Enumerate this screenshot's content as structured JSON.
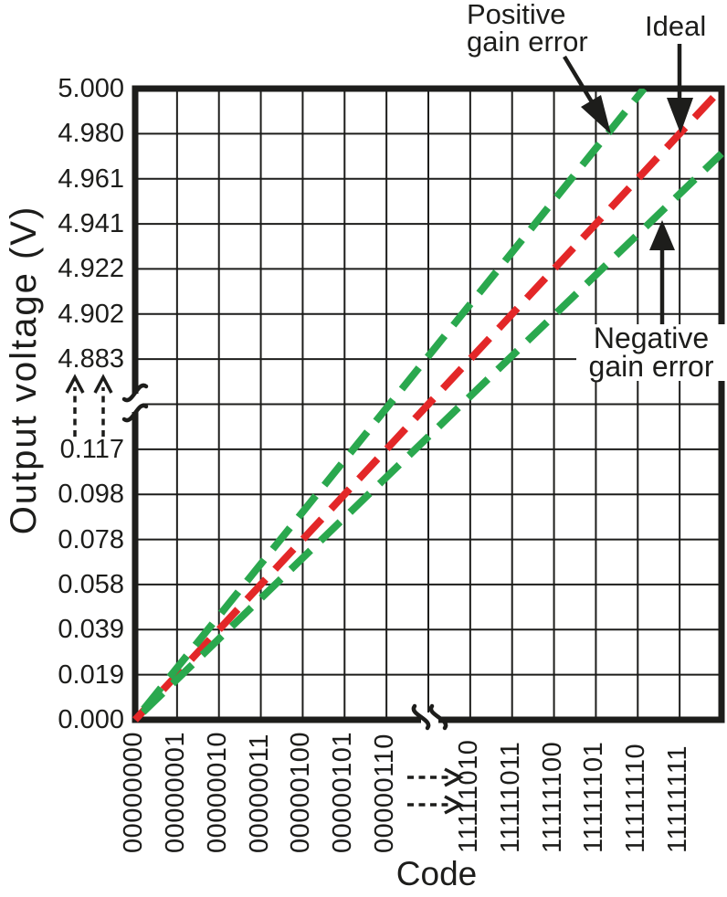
{
  "chart_data": {
    "type": "line",
    "title": "",
    "xlabel": "Code",
    "ylabel": "Output voltage (V)",
    "x_axis": {
      "break": true,
      "tick_labels_before_break": [
        "00000000",
        "00000001",
        "00000010",
        "00000011",
        "00000100",
        "00000101",
        "00000110"
      ],
      "tick_labels_after_break": [
        "11111010",
        "11111011",
        "11111100",
        "11111101",
        "11111110",
        "11111111"
      ]
    },
    "y_axis": {
      "break": true,
      "tick_labels_top": [
        "5.000",
        "4.980",
        "4.961",
        "4.941",
        "4.922",
        "4.902",
        "4.883"
      ],
      "tick_labels_bottom": [
        "0.117",
        "0.098",
        "0.078",
        "0.058",
        "0.039",
        "0.019",
        "0.000"
      ]
    },
    "grid": {
      "cols": 14,
      "rows": 14,
      "visible": true
    },
    "series": [
      {
        "name": "Ideal",
        "color": "#e32728",
        "style": "dashed",
        "from_grid": [
          0,
          0
        ],
        "to_grid": [
          14,
          14
        ]
      },
      {
        "name": "Positive gain error",
        "color": "#2aa84e",
        "style": "dashed",
        "from_grid": [
          0,
          0
        ],
        "to_grid": [
          12.15,
          14
        ]
      },
      {
        "name": "Negative gain error",
        "color": "#2aa84e",
        "style": "dashed",
        "from_grid": [
          0,
          0
        ],
        "to_grid": [
          14,
          12.56
        ]
      }
    ]
  },
  "annotations": {
    "positive": {
      "line1": "Positive",
      "line2": "gain error"
    },
    "ideal": {
      "label": "Ideal"
    },
    "negative": {
      "line1": "Negative",
      "line2": "gain error"
    }
  },
  "colors": {
    "ideal": "#e32728",
    "gain_error": "#2aa84e",
    "axis": "#1d1d1b"
  }
}
